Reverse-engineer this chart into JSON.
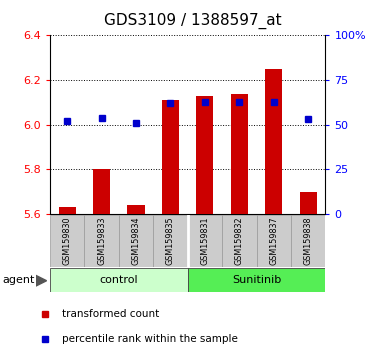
{
  "title": "GDS3109 / 1388597_at",
  "samples": [
    "GSM159830",
    "GSM159833",
    "GSM159834",
    "GSM159835",
    "GSM159831",
    "GSM159832",
    "GSM159837",
    "GSM159838"
  ],
  "bar_values": [
    5.63,
    5.8,
    5.64,
    6.11,
    6.13,
    6.14,
    6.25,
    5.7
  ],
  "bar_base": 5.6,
  "percentile_values": [
    52,
    54,
    51,
    62,
    63,
    63,
    63,
    53
  ],
  "ylim_left": [
    5.6,
    6.4
  ],
  "ylim_right": [
    0,
    100
  ],
  "yticks_left": [
    5.6,
    5.8,
    6.0,
    6.2,
    6.4
  ],
  "yticks_right": [
    0,
    25,
    50,
    75,
    100
  ],
  "ytick_labels_right": [
    "0",
    "25",
    "50",
    "75",
    "100%"
  ],
  "bar_color": "#cc0000",
  "dot_color": "#0000cc",
  "ctrl_color": "#ccffcc",
  "sun_color": "#55ee55",
  "ctrl_label": "control",
  "sun_label": "Sunitinib",
  "agent_label": "agent",
  "legend_items": [
    {
      "color": "#cc0000",
      "label": "transformed count"
    },
    {
      "color": "#0000cc",
      "label": "percentile rank within the sample"
    }
  ],
  "grid_color": "#000000",
  "title_fontsize": 11,
  "tick_fontsize": 8,
  "bar_width": 0.5
}
